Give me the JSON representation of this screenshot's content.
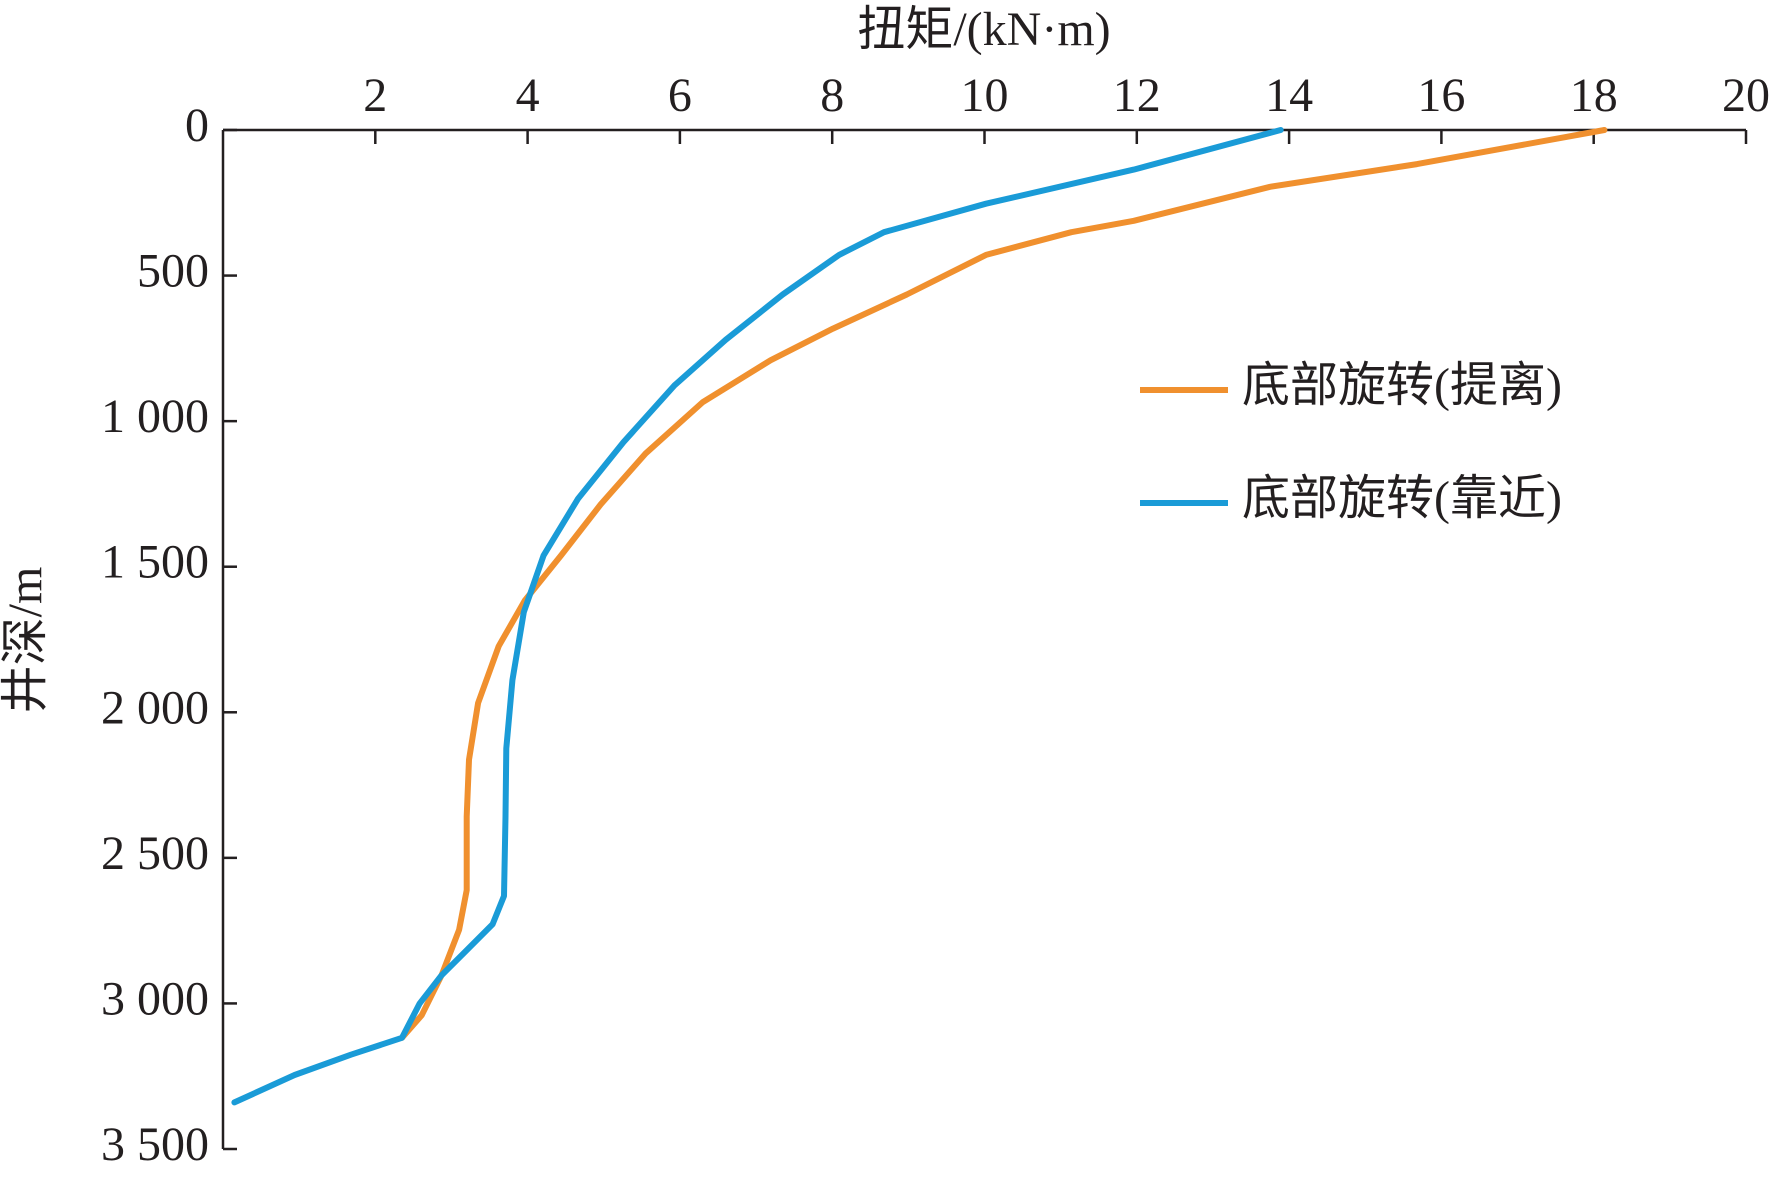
{
  "chart_data": {
    "type": "line",
    "x_label": "扭矩/(kN·m)",
    "y_label": "井深/m",
    "xlim": [
      0,
      20
    ],
    "xticks": [
      2,
      4,
      6,
      8,
      10,
      12,
      14,
      16,
      18,
      20
    ],
    "ylim": [
      0,
      3500
    ],
    "y_inverted": true,
    "yticks": [
      0,
      500,
      {
        "value": 1000,
        "label": "1 000"
      },
      {
        "value": 1500,
        "label": "1 500"
      },
      {
        "value": 2000,
        "label": "2 000"
      },
      {
        "value": 2500,
        "label": "2 500"
      },
      {
        "value": 3000,
        "label": "3 000"
      },
      {
        "value": 3500,
        "label": "3 500"
      }
    ],
    "x_axis_position": "top",
    "series": [
      {
        "name": "底部旋转(提离)",
        "color": "#f0902e",
        "x": [
          18.14,
          15.68,
          13.75,
          11.96,
          11.14,
          10.02,
          8.98,
          8.01,
          7.19,
          6.3,
          5.55,
          4.96,
          4.44,
          3.96,
          3.62,
          3.35,
          3.23,
          3.2,
          3.2,
          3.1,
          2.87,
          2.61,
          2.35
        ],
        "y": [
          0,
          117,
          195,
          312,
          351,
          429,
          565,
          682,
          791,
          935,
          1111,
          1286,
          1461,
          1617,
          1773,
          1968,
          2163,
          2358,
          2611,
          2747,
          2903,
          3040,
          3118
        ]
      },
      {
        "name": "底部旋转(靠近)",
        "color": "#1a9bd7",
        "x": [
          13.89,
          11.96,
          10.02,
          8.68,
          8.09,
          7.35,
          6.6,
          5.93,
          5.26,
          4.66,
          4.21,
          3.95,
          3.8,
          3.72,
          3.71,
          3.69,
          3.54,
          3.17,
          2.87,
          2.58,
          2.35,
          1.68,
          0.94,
          0.15
        ],
        "y": [
          0,
          136,
          253,
          351,
          429,
          565,
          721,
          877,
          1072,
          1267,
          1461,
          1656,
          1890,
          2124,
          2358,
          2631,
          2728,
          2825,
          2903,
          3001,
          3118,
          3176,
          3246,
          3340
        ]
      }
    ]
  }
}
